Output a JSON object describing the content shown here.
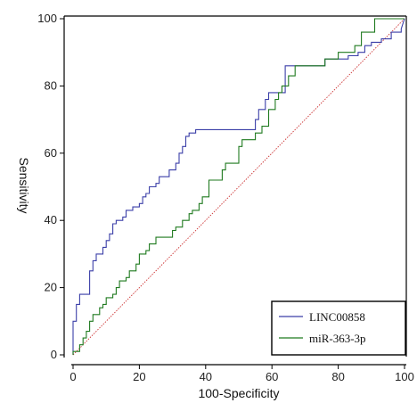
{
  "chart_data": {
    "type": "line",
    "title": "",
    "xlabel": "100-Specificity",
    "ylabel": "Sensitivity",
    "xlim": [
      0,
      100
    ],
    "ylim": [
      0,
      100
    ],
    "xticks": [
      0,
      20,
      40,
      60,
      80,
      100
    ],
    "yticks": [
      0,
      20,
      40,
      60,
      80,
      100
    ],
    "grid": false,
    "legend_position": "bottom-right",
    "diagonal": {
      "x": [
        0,
        100
      ],
      "y": [
        0,
        100
      ],
      "color": "#cc3333"
    },
    "series": [
      {
        "name": "LINC00858",
        "color": "#3b3fa8",
        "x": [
          0,
          0,
          1,
          1,
          2,
          2,
          3,
          3,
          5,
          5,
          6,
          6,
          7,
          7,
          9,
          9,
          10,
          10,
          11,
          11,
          12,
          12,
          13,
          13,
          15,
          15,
          16,
          16,
          18,
          18,
          20,
          20,
          21,
          21,
          22,
          22,
          23,
          23,
          25,
          25,
          26,
          26,
          27,
          27,
          29,
          29,
          31,
          31,
          32,
          32,
          33,
          33,
          34,
          34,
          35,
          35,
          37,
          37,
          39,
          39,
          41,
          41,
          43,
          43,
          55,
          55,
          56,
          56,
          58,
          58,
          59,
          59,
          64,
          64,
          76,
          76,
          80,
          80,
          83,
          83,
          86,
          86,
          88,
          88,
          90,
          90,
          93,
          93,
          96,
          96,
          99,
          99,
          100
        ],
        "y": [
          0,
          10,
          10,
          15,
          15,
          18,
          18,
          18,
          18,
          25,
          25,
          28,
          28,
          30,
          30,
          32,
          32,
          34,
          34,
          36,
          36,
          39,
          39,
          40,
          40,
          41,
          41,
          43,
          43,
          44,
          44,
          45,
          45,
          47,
          47,
          48,
          48,
          50,
          50,
          51,
          51,
          53,
          53,
          53,
          53,
          55,
          55,
          57,
          57,
          60,
          60,
          62,
          62,
          65,
          65,
          66,
          66,
          67,
          67,
          67,
          67,
          67,
          67,
          67,
          67,
          70,
          70,
          73,
          73,
          76,
          76,
          78,
          78,
          86,
          86,
          88,
          88,
          88,
          88,
          89,
          89,
          90,
          90,
          92,
          92,
          93,
          93,
          94,
          94,
          96,
          96,
          97,
          100
        ]
      },
      {
        "name": "miR-363-3p",
        "color": "#1f7a1f",
        "x": [
          0,
          0,
          2,
          2,
          3,
          3,
          4,
          4,
          5,
          5,
          6,
          6,
          8,
          8,
          9,
          9,
          10,
          10,
          12,
          12,
          13,
          13,
          14,
          14,
          16,
          16,
          17,
          17,
          19,
          19,
          20,
          20,
          22,
          22,
          23,
          23,
          25,
          25,
          27,
          27,
          30,
          30,
          31,
          31,
          33,
          33,
          35,
          35,
          36,
          36,
          38,
          38,
          39,
          39,
          41,
          41,
          43,
          43,
          45,
          45,
          46,
          46,
          50,
          50,
          51,
          51,
          55,
          55,
          57,
          57,
          59,
          59,
          61,
          61,
          62,
          62,
          63,
          63,
          65,
          65,
          67,
          67,
          76,
          76,
          80,
          80,
          85,
          85,
          87,
          87,
          91,
          91,
          100
        ],
        "y": [
          0,
          1,
          1,
          3,
          3,
          5,
          5,
          7,
          7,
          10,
          10,
          12,
          12,
          14,
          14,
          15,
          15,
          17,
          17,
          18,
          18,
          20,
          20,
          22,
          22,
          23,
          23,
          25,
          25,
          27,
          27,
          30,
          30,
          31,
          31,
          33,
          33,
          35,
          35,
          35,
          35,
          37,
          37,
          38,
          38,
          40,
          40,
          42,
          42,
          43,
          43,
          45,
          45,
          47,
          47,
          52,
          52,
          52,
          52,
          55,
          55,
          57,
          57,
          62,
          62,
          64,
          64,
          66,
          66,
          68,
          68,
          73,
          73,
          76,
          76,
          78,
          78,
          80,
          80,
          83,
          83,
          86,
          86,
          88,
          88,
          90,
          90,
          92,
          92,
          96,
          96,
          100,
          100
        ]
      }
    ]
  }
}
